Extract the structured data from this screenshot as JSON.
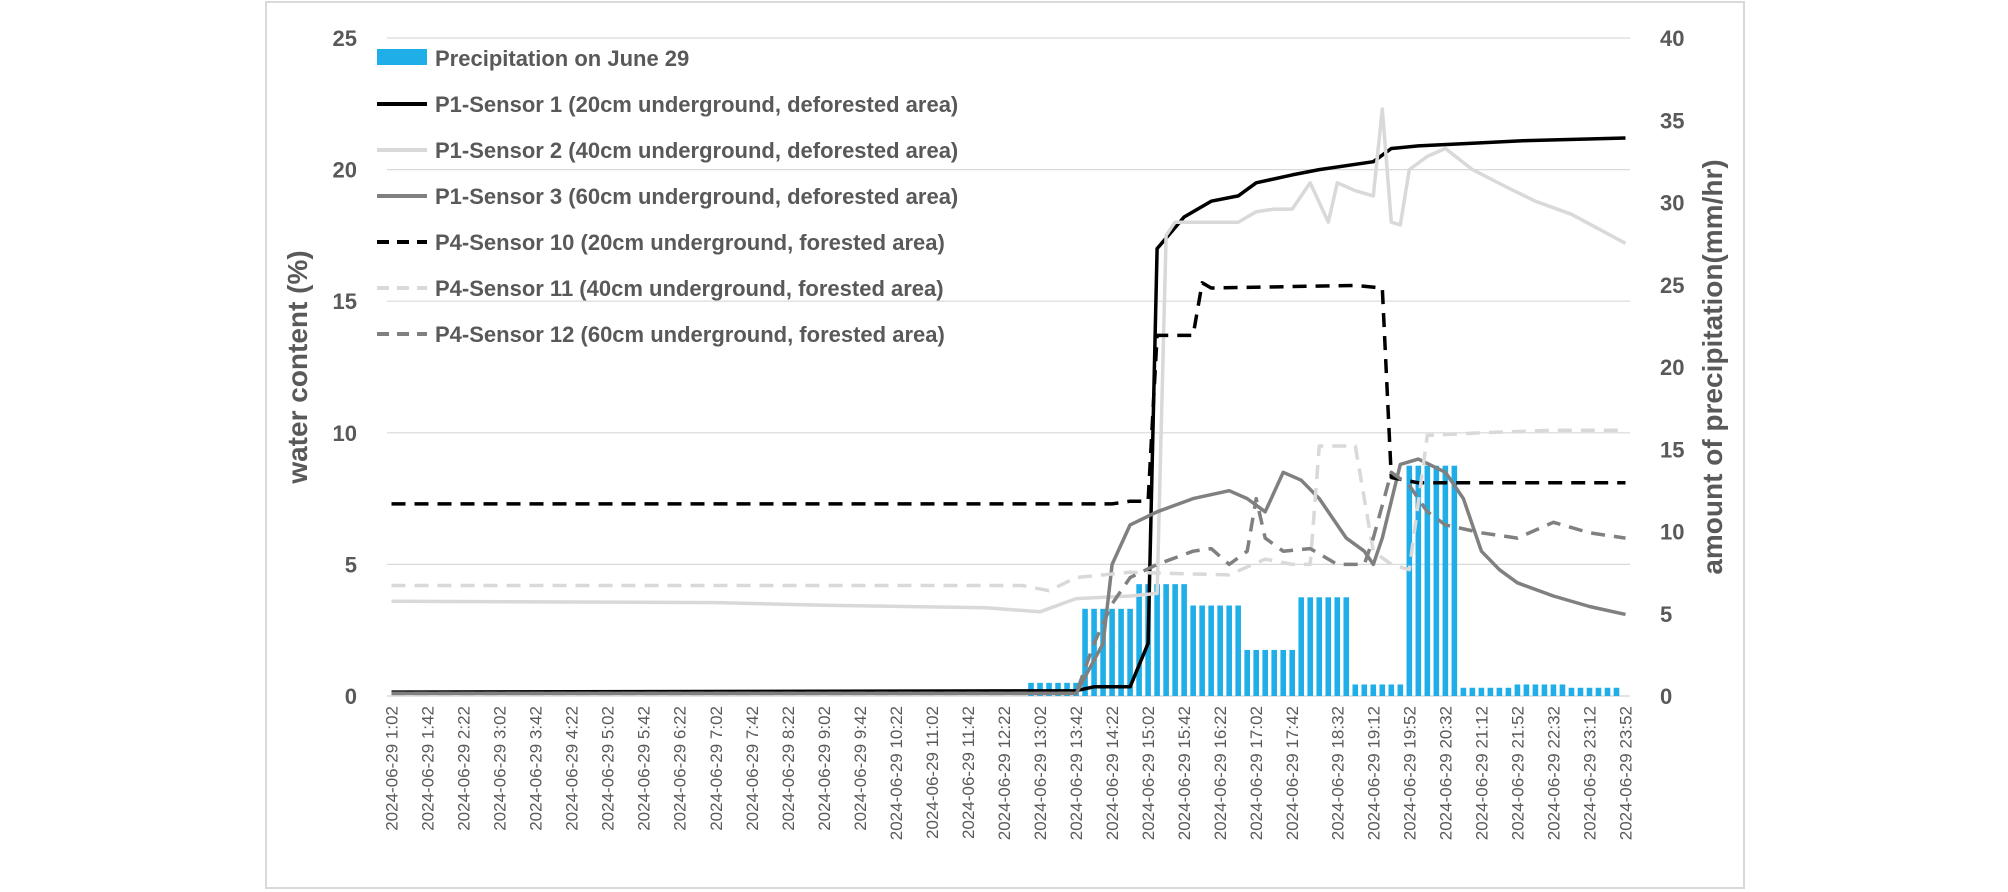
{
  "chart_data": {
    "type": "bar+line",
    "title": "",
    "y_left": {
      "label": "water content (%)",
      "min": 0,
      "max": 25,
      "ticks": [
        "0",
        "5",
        "10",
        "15",
        "20",
        "25"
      ]
    },
    "y_right": {
      "label": "amount of precipitation(mm/hr)",
      "min": 0,
      "max": 40,
      "ticks": [
        "0",
        "5",
        "10",
        "15",
        "20",
        "25",
        "30",
        "35",
        "40"
      ]
    },
    "x": {
      "start_label": "2024-06-29 1:02",
      "end_label": "2024-06-29 23:52",
      "interval_minutes": 10
    },
    "x_tick_labels": [
      "2024-06-29 1:02",
      "2024-06-29 1:42",
      "2024-06-29 2:22",
      "2024-06-29 3:02",
      "2024-06-29 3:42",
      "2024-06-29 4:22",
      "2024-06-29 5:02",
      "2024-06-29 5:42",
      "2024-06-29 6:22",
      "2024-06-29 7:02",
      "2024-06-29 7:42",
      "2024-06-29 8:22",
      "2024-06-29 9:02",
      "2024-06-29 9:42",
      "2024-06-29 10:22",
      "2024-06-29 11:02",
      "2024-06-29 11:42",
      "2024-06-29 12:22",
      "2024-06-29 13:02",
      "2024-06-29 13:42",
      "2024-06-29 14:22",
      "2024-06-29 15:02",
      "2024-06-29 15:42",
      "2024-06-29 16:22",
      "2024-06-29 17:02",
      "2024-06-29 17:42",
      "2024-06-29 18:32",
      "2024-06-29 19:12",
      "2024-06-29 19:52",
      "2024-06-29 20:32",
      "2024-06-29 21:12",
      "2024-06-29 21:52",
      "2024-06-29 22:32",
      "2024-06-29 23:12",
      "2024-06-29 23:52"
    ],
    "grid": true,
    "legend_position": "top-left",
    "bars": {
      "name": "Precipitation on June 29",
      "axis": "right",
      "color": "#1faee8",
      "hourly": [
        {
          "hour": "12:52",
          "value": 0.8
        },
        {
          "hour": "13:52",
          "value": 5.3
        },
        {
          "hour": "14:52",
          "value": 6.8
        },
        {
          "hour": "15:52",
          "value": 5.5
        },
        {
          "hour": "16:52",
          "value": 2.8
        },
        {
          "hour": "17:52",
          "value": 6.0
        },
        {
          "hour": "18:52",
          "value": 0.7
        },
        {
          "hour": "19:52",
          "value": 14.0
        },
        {
          "hour": "20:52",
          "value": 0.5
        },
        {
          "hour": "21:52",
          "value": 0.7
        },
        {
          "hour": "22:52",
          "value": 0.5
        }
      ]
    },
    "series": [
      {
        "name": "P1-Sensor 1 (20cm underground, deforested area)",
        "axis": "left",
        "color": "#000000",
        "dash": "solid",
        "points": [
          [
            "01:02",
            0.15
          ],
          [
            "13:42",
            0.2
          ],
          [
            "14:02",
            0.35
          ],
          [
            "14:42",
            0.35
          ],
          [
            "15:02",
            2.0
          ],
          [
            "15:12",
            17.0
          ],
          [
            "15:42",
            18.2
          ],
          [
            "16:12",
            18.8
          ],
          [
            "16:42",
            19.0
          ],
          [
            "17:02",
            19.5
          ],
          [
            "17:42",
            19.8
          ],
          [
            "18:12",
            20.0
          ],
          [
            "19:12",
            20.3
          ],
          [
            "19:32",
            20.8
          ],
          [
            "20:02",
            20.9
          ],
          [
            "21:02",
            21.0
          ],
          [
            "22:02",
            21.1
          ],
          [
            "23:52",
            21.2
          ]
        ]
      },
      {
        "name": "P1-Sensor 2 (40cm underground, deforested area)",
        "axis": "left",
        "color": "#d9d9d9",
        "dash": "solid",
        "points": [
          [
            "01:02",
            3.6
          ],
          [
            "07:02",
            3.55
          ],
          [
            "09:02",
            3.45
          ],
          [
            "12:02",
            3.35
          ],
          [
            "13:02",
            3.2
          ],
          [
            "13:42",
            3.7
          ],
          [
            "14:42",
            3.8
          ],
          [
            "15:12",
            3.9
          ],
          [
            "15:22",
            17.5
          ],
          [
            "15:32",
            18.0
          ],
          [
            "16:42",
            18.0
          ],
          [
            "17:02",
            18.4
          ],
          [
            "17:22",
            18.5
          ],
          [
            "17:42",
            18.5
          ],
          [
            "18:02",
            19.5
          ],
          [
            "18:22",
            18.0
          ],
          [
            "18:32",
            19.5
          ],
          [
            "18:52",
            19.2
          ],
          [
            "19:12",
            19.0
          ],
          [
            "19:22",
            22.3
          ],
          [
            "19:32",
            18.0
          ],
          [
            "19:42",
            17.9
          ],
          [
            "19:52",
            20.0
          ],
          [
            "20:12",
            20.5
          ],
          [
            "20:32",
            20.8
          ],
          [
            "21:02",
            20.0
          ],
          [
            "21:42",
            19.3
          ],
          [
            "22:12",
            18.8
          ],
          [
            "22:52",
            18.3
          ],
          [
            "23:52",
            17.2
          ]
        ]
      },
      {
        "name": "P1-Sensor 3 (60cm underground, deforested area)",
        "axis": "left",
        "color": "#808080",
        "dash": "solid",
        "points": [
          [
            "01:02",
            0.1
          ],
          [
            "13:42",
            0.1
          ],
          [
            "14:12",
            2.0
          ],
          [
            "14:22",
            5.0
          ],
          [
            "14:42",
            6.5
          ],
          [
            "15:12",
            7.0
          ],
          [
            "15:52",
            7.5
          ],
          [
            "16:32",
            7.8
          ],
          [
            "16:52",
            7.5
          ],
          [
            "17:12",
            7.0
          ],
          [
            "17:32",
            8.5
          ],
          [
            "17:52",
            8.2
          ],
          [
            "18:12",
            7.5
          ],
          [
            "18:42",
            6.0
          ],
          [
            "19:02",
            5.5
          ],
          [
            "19:12",
            5.0
          ],
          [
            "19:22",
            6.0
          ],
          [
            "19:42",
            8.8
          ],
          [
            "20:02",
            9.0
          ],
          [
            "20:32",
            8.5
          ],
          [
            "20:52",
            7.5
          ],
          [
            "21:12",
            5.5
          ],
          [
            "21:32",
            4.8
          ],
          [
            "21:52",
            4.3
          ],
          [
            "22:32",
            3.8
          ],
          [
            "23:12",
            3.4
          ],
          [
            "23:52",
            3.1
          ]
        ]
      },
      {
        "name": "P4-Sensor 10 (20cm underground, forested area)",
        "axis": "left",
        "color": "#000000",
        "dash": "dashed",
        "points": [
          [
            "01:02",
            7.3
          ],
          [
            "14:22",
            7.3
          ],
          [
            "14:42",
            7.4
          ],
          [
            "15:02",
            7.4
          ],
          [
            "15:12",
            13.7
          ],
          [
            "15:52",
            13.7
          ],
          [
            "16:02",
            15.7
          ],
          [
            "16:12",
            15.5
          ],
          [
            "18:52",
            15.6
          ],
          [
            "19:22",
            15.5
          ],
          [
            "19:32",
            8.3
          ],
          [
            "20:02",
            8.1
          ],
          [
            "23:52",
            8.1
          ]
        ]
      },
      {
        "name": "P4-Sensor 11 (40cm underground, forested area)",
        "axis": "left",
        "color": "#d9d9d9",
        "dash": "dashed",
        "points": [
          [
            "01:02",
            4.2
          ],
          [
            "12:42",
            4.2
          ],
          [
            "13:12",
            4.0
          ],
          [
            "13:42",
            4.5
          ],
          [
            "14:42",
            4.7
          ],
          [
            "16:32",
            4.6
          ],
          [
            "17:12",
            5.2
          ],
          [
            "17:42",
            5.0
          ],
          [
            "18:02",
            5.0
          ],
          [
            "18:12",
            9.5
          ],
          [
            "18:52",
            9.5
          ],
          [
            "19:12",
            5.5
          ],
          [
            "19:32",
            5.0
          ],
          [
            "19:52",
            4.8
          ],
          [
            "20:12",
            9.9
          ],
          [
            "21:12",
            10.0
          ],
          [
            "22:32",
            10.1
          ],
          [
            "23:52",
            10.1
          ]
        ]
      },
      {
        "name": "P4-Sensor 12 (60cm underground, forested area)",
        "axis": "left",
        "color": "#808080",
        "dash": "dashed",
        "points": [
          [
            "01:02",
            0.1
          ],
          [
            "13:42",
            0.1
          ],
          [
            "14:02",
            2.0
          ],
          [
            "14:22",
            3.5
          ],
          [
            "14:42",
            4.5
          ],
          [
            "15:12",
            5.0
          ],
          [
            "15:52",
            5.5
          ],
          [
            "16:12",
            5.6
          ],
          [
            "16:32",
            5.0
          ],
          [
            "16:52",
            5.5
          ],
          [
            "17:02",
            7.5
          ],
          [
            "17:12",
            6.0
          ],
          [
            "17:32",
            5.5
          ],
          [
            "18:02",
            5.6
          ],
          [
            "18:32",
            5.0
          ],
          [
            "19:02",
            5.0
          ],
          [
            "19:12",
            6.0
          ],
          [
            "19:32",
            8.5
          ],
          [
            "19:52",
            8.0
          ],
          [
            "20:12",
            7.0
          ],
          [
            "20:32",
            6.5
          ],
          [
            "21:12",
            6.2
          ],
          [
            "21:52",
            6.0
          ],
          [
            "22:32",
            6.6
          ],
          [
            "23:12",
            6.2
          ],
          [
            "23:52",
            6.0
          ]
        ]
      }
    ]
  }
}
